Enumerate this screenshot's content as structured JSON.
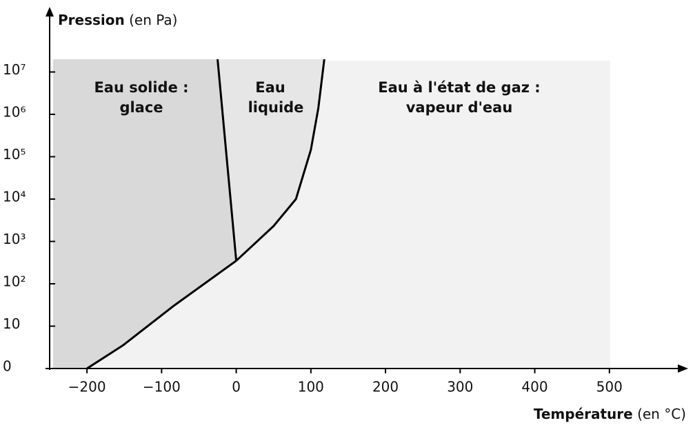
{
  "chart_data": {
    "type": "line",
    "y_label": "Pression",
    "y_label_unit": "(en Pa)",
    "x_label": "Température",
    "x_label_unit": "(en °C)",
    "regions": [
      "Eau solide :",
      "glace",
      "Eau",
      "liquide",
      "Eau à l'état de gaz :",
      "vapeur d'eau"
    ],
    "series": [
      {
        "color": "#000000",
        "x": [
          -200,
          -152,
          -84,
          0
        ],
        "values": [
          0,
          3.5,
          30,
          350
        ]
      },
      {
        "color": "#000000",
        "x": [
          0,
          -25
        ],
        "values": [
          350,
          20000000
        ]
      },
      {
        "color": "#000000",
        "x": [
          0,
          50,
          80,
          100,
          110,
          118
        ],
        "values": [
          350,
          2300,
          10000,
          145000,
          1400000,
          20000000
        ]
      }
    ],
    "xlim": [
      -250,
      600
    ],
    "xticks": [
      {
        "value": -200,
        "label": "−200"
      },
      {
        "value": -100,
        "label": "−100"
      },
      0,
      100,
      200,
      300,
      400,
      500
    ],
    "ylim": [
      0,
      20000000
    ],
    "yscale": "log-with-zero",
    "yticks": [
      0,
      10,
      {
        "value": 100,
        "label": "10²"
      },
      {
        "value": 1000,
        "label": "10³"
      },
      {
        "value": 10000,
        "label": "10⁴"
      },
      {
        "value": 100000,
        "label": "10⁵"
      },
      {
        "value": 1000000,
        "label": "10⁶"
      },
      {
        "value": 10000000,
        "label": "10⁷"
      }
    ]
  }
}
